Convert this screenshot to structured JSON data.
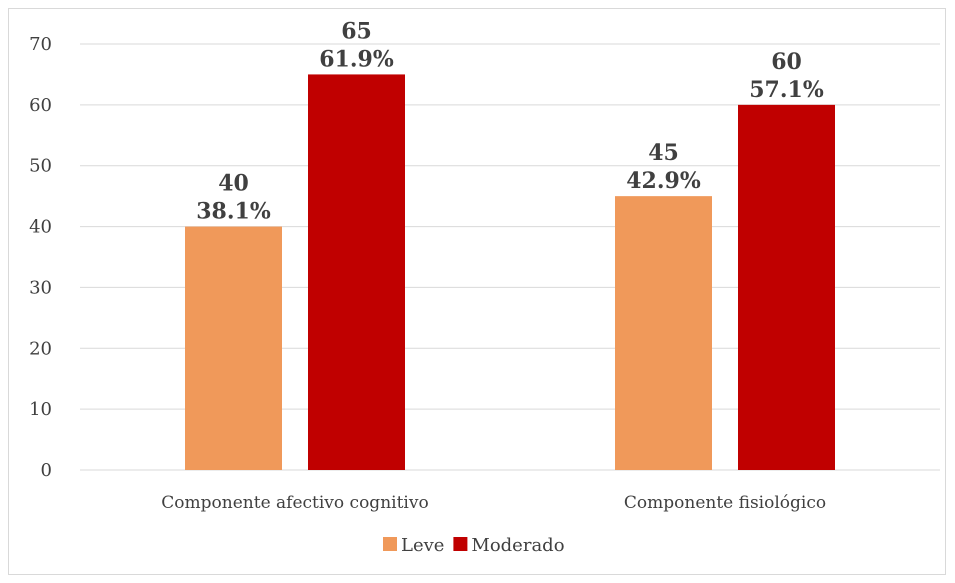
{
  "chart_data": {
    "type": "bar",
    "title": "",
    "xlabel": "",
    "ylabel": "",
    "ylim": [
      0,
      70
    ],
    "yticks": [
      0,
      10,
      20,
      30,
      40,
      50,
      60,
      70
    ],
    "grid": true,
    "legend_position": "bottom",
    "categories": [
      "Componente afectivo cognitivo",
      "Componente fisiológico"
    ],
    "series": [
      {
        "name": "Leve",
        "color": "#F0995A",
        "values": [
          40,
          45
        ],
        "percent_labels": [
          "38.1%",
          "42.9%"
        ]
      },
      {
        "name": "Moderado",
        "color": "#C00000",
        "values": [
          65,
          60
        ],
        "percent_labels": [
          "61.9%",
          "57.1%"
        ]
      }
    ]
  }
}
